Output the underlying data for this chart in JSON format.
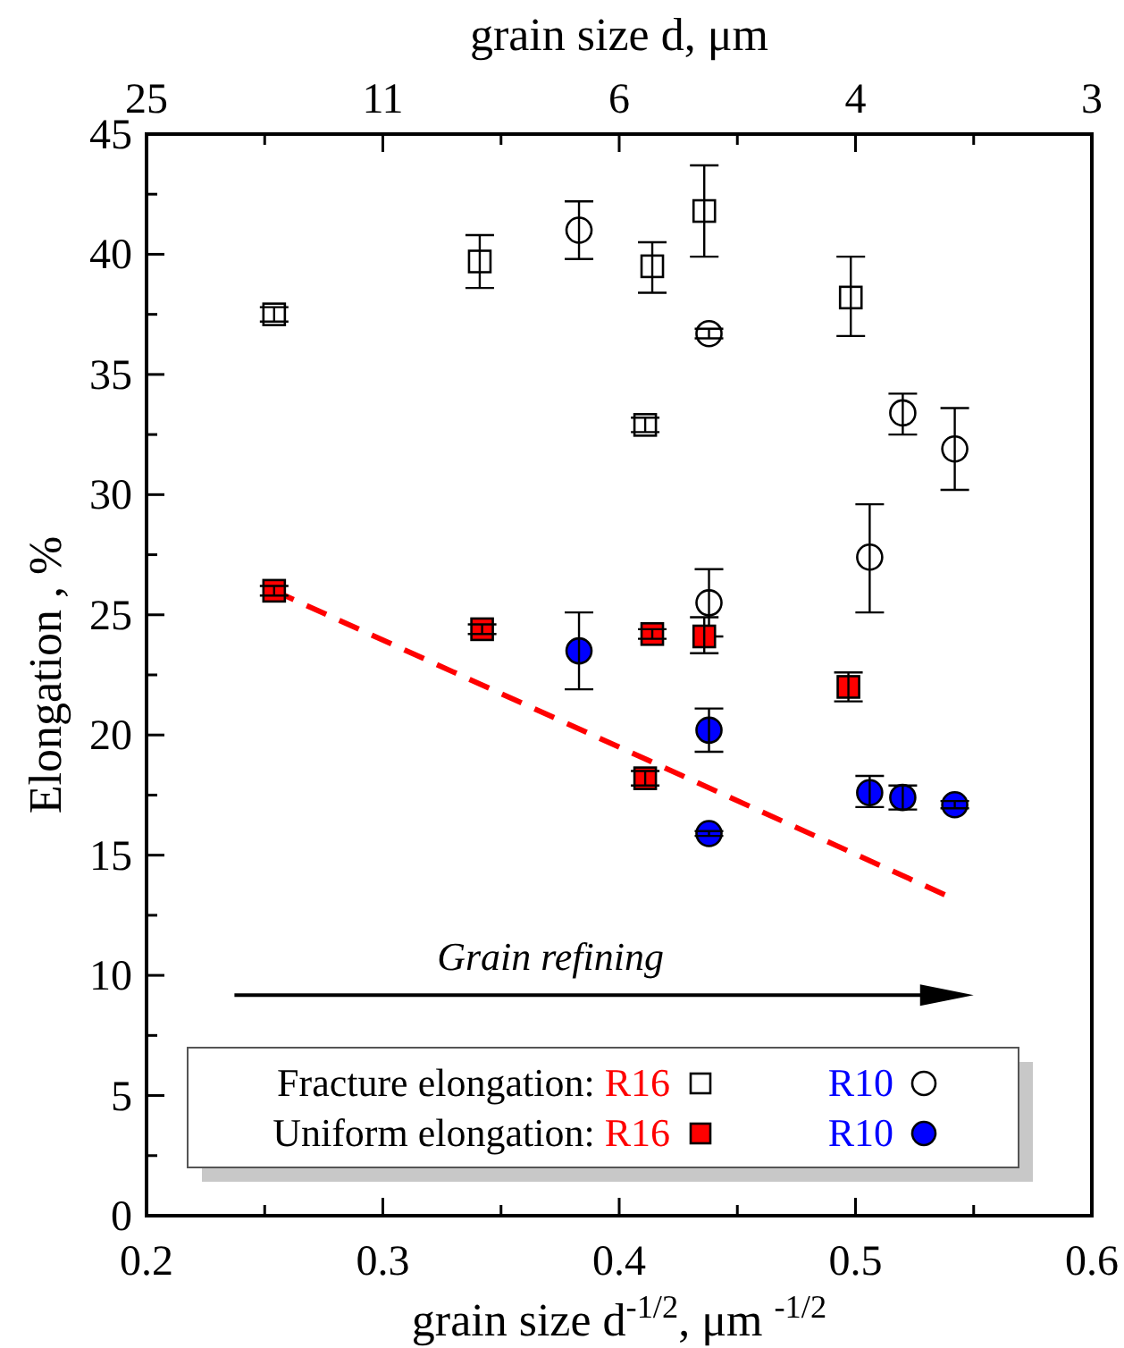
{
  "chart_data": {
    "type": "scatter",
    "xlabel": "grain size d$^{-1/2}$, μm $^{-1/2}$",
    "ylabel": "Elongation , %",
    "x2label": "grain size d, μm",
    "xlim": [
      0.2,
      0.6
    ],
    "xticks": [
      0.2,
      {
        "value": 0.25,
        "label": null
      },
      0.3,
      {
        "value": 0.35,
        "label": null
      },
      0.4,
      {
        "value": 0.45,
        "label": null
      },
      0.5,
      {
        "value": 0.55,
        "label": null
      },
      0.6
    ],
    "ylim": [
      0,
      45
    ],
    "yticks": [
      0,
      {
        "value": 2.5,
        "label": null
      },
      5,
      {
        "value": 7.5,
        "label": null
      },
      10,
      {
        "value": 12.5,
        "label": null
      },
      15,
      {
        "value": 17.5,
        "label": null
      },
      20,
      {
        "value": 22.5,
        "label": null
      },
      25,
      {
        "value": 27.5,
        "label": null
      },
      30,
      {
        "value": 32.5,
        "label": null
      },
      35,
      {
        "value": 37.5,
        "label": null
      },
      40,
      {
        "value": 42.5,
        "label": null
      },
      45
    ],
    "grid": false,
    "legend": "bottom left",
    "annotations": [
      "Grain refining",
      "25",
      "11",
      "6",
      "4",
      "3"
    ],
    "series": [
      {
        "name": "Fracture elongation: R16",
        "color": "#ffffff",
        "marker": "square",
        "x": [
          0.254,
          0.341,
          0.414,
          0.436,
          0.498,
          0.411
        ],
        "values": [
          37.5,
          39.7,
          39.5,
          41.8,
          38.2,
          32.9
        ],
        "errors": [
          0.3,
          [
            38.6,
            40.8
          ],
          [
            38.4,
            40.5
          ],
          [
            39.9,
            43.7
          ],
          [
            36.6,
            39.9
          ],
          0.3
        ]
      },
      {
        "name": "R10",
        "color": "#ffffff",
        "marker": "circle",
        "x": [
          0.383,
          0.438,
          0.52,
          0.542,
          0.438,
          0.506
        ],
        "values": [
          41.0,
          36.7,
          33.4,
          31.9,
          25.5,
          27.4
        ],
        "errors": [
          [
            39.8,
            42.2
          ],
          0.2,
          [
            32.5,
            34.2
          ],
          [
            30.2,
            33.6
          ],
          [
            24.1,
            26.9
          ],
          [
            25.1,
            29.6
          ]
        ]
      },
      {
        "name": "Uniform elongation: R16",
        "color": "#ff0000",
        "marker": "square",
        "x": [
          0.254,
          0.342,
          0.414,
          0.436,
          0.497,
          0.411
        ],
        "values": [
          26.0,
          24.4,
          24.2,
          24.1,
          22.0,
          18.2
        ],
        "errors": [
          0.2,
          0.2,
          0.2,
          [
            23.4,
            24.9
          ],
          [
            21.4,
            22.6
          ],
          0.3
        ]
      },
      {
        "name": "R10",
        "color": "#0000ff",
        "marker": "circle",
        "x": [
          0.383,
          0.438,
          0.438,
          0.506,
          0.52,
          0.542
        ],
        "values": [
          23.5,
          20.2,
          15.9,
          17.6,
          17.4,
          17.1
        ],
        "errors": [
          [
            21.9,
            25.1
          ],
          [
            19.3,
            21.1
          ],
          0.1,
          [
            17.0,
            18.3
          ],
          [
            16.9,
            17.9
          ],
          0.15
        ]
      },
      {
        "type": "line",
        "color": "#ff0000",
        "line_style": "dashed",
        "marker": "none",
        "x": [
          0.254,
          0.539
        ],
        "values": [
          26.0,
          13.3
        ]
      }
    ]
  }
}
